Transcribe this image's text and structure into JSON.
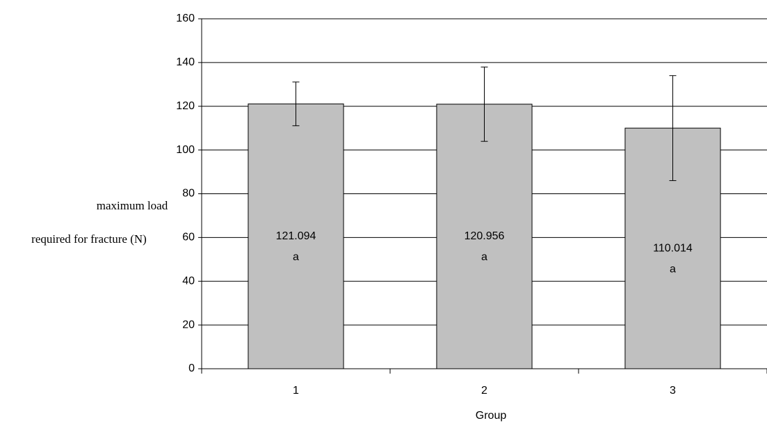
{
  "chart_data": {
    "type": "bar",
    "categories": [
      "1",
      "2",
      "3"
    ],
    "values": [
      121.094,
      120.956,
      110.014
    ],
    "errors": [
      10,
      17,
      24
    ],
    "annotations": [
      "a",
      "a",
      "a"
    ],
    "color": "#c0c0c0",
    "x_label": "Group",
    "y_label": [
      "maximum  load",
      "required for fracture (N)"
    ],
    "ylim": [
      0,
      160
    ],
    "yticks": [
      0,
      20,
      40,
      60,
      80,
      100,
      120,
      140,
      160
    ],
    "grid": true
  }
}
